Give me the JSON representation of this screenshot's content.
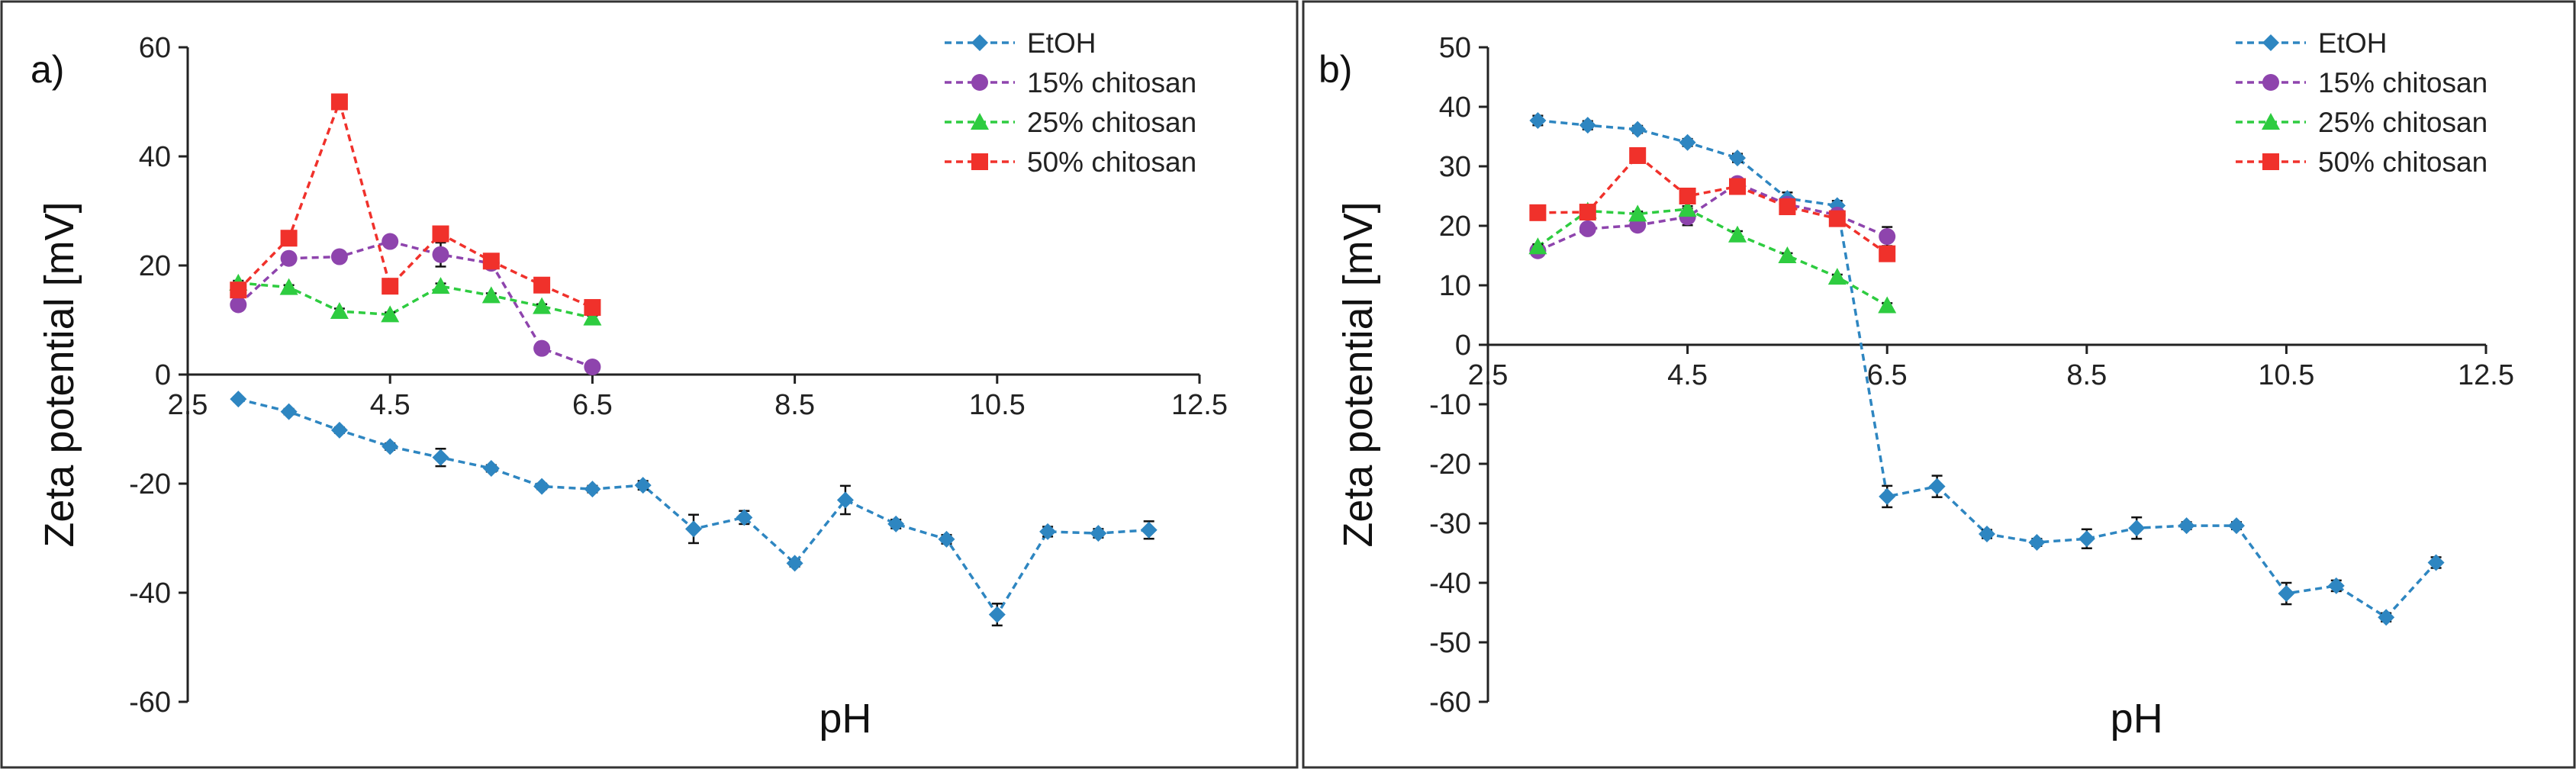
{
  "chart_data": [
    {
      "panel": "a)",
      "type": "line",
      "xlabel": "pH",
      "ylabel": "Zeta potential [mV]",
      "xlim": [
        2.5,
        12.5
      ],
      "ylim": [
        -60,
        60
      ],
      "xticks": [
        2.5,
        4.5,
        6.5,
        8.5,
        10.5,
        12.5
      ],
      "yticks": [
        -60,
        -40,
        -20,
        0,
        20,
        40,
        60
      ],
      "xtick_labels": [
        "2.5",
        "4.5",
        "6.5",
        "8.5",
        "10.5",
        "12.5"
      ],
      "ytick_labels": [
        "-60",
        "-40",
        "-20",
        "0",
        "20",
        "40",
        "60"
      ],
      "legend_position": "top-right",
      "series": [
        {
          "name": "EtOH",
          "color": "#2e86c1",
          "marker": "diamond",
          "x": [
            3,
            3.5,
            4,
            4.5,
            5,
            5.5,
            6,
            6.5,
            7,
            7.5,
            8,
            8.5,
            9,
            9.5,
            10,
            10.5,
            11,
            11.5,
            12
          ],
          "y": [
            -4.5,
            -6.8,
            -10.2,
            -13.2,
            -15.2,
            -17.2,
            -20.5,
            -21,
            -20.3,
            -28.3,
            -26.2,
            -34.6,
            -23,
            -27.4,
            -30.2,
            -44,
            -28.8,
            -29.1,
            -28.5
          ],
          "err": [
            0.4,
            0.5,
            0.5,
            0.6,
            1.6,
            0.6,
            0.5,
            0.6,
            0.8,
            2.6,
            1.2,
            0.6,
            2.6,
            0.8,
            0.8,
            2.0,
            0.9,
            0.8,
            1.6
          ]
        },
        {
          "name": "15% chitosan",
          "color": "#8e44ad",
          "marker": "circle",
          "x": [
            3,
            3.5,
            4,
            4.5,
            5,
            5.5,
            6,
            6.5
          ],
          "y": [
            12.8,
            21.3,
            21.6,
            24.4,
            22,
            20.4,
            4.8,
            1.4
          ],
          "err": [
            0.4,
            0.6,
            0.5,
            0.7,
            2.2,
            0.8,
            0.4,
            0.3
          ]
        },
        {
          "name": "25% chitosan",
          "color": "#2ecc40",
          "marker": "triangle",
          "x": [
            3,
            3.5,
            4,
            4.5,
            5,
            5.5,
            6,
            6.5
          ],
          "y": [
            16.8,
            16,
            11.6,
            11,
            16.2,
            14.5,
            12.5,
            10.4
          ],
          "err": [
            0.4,
            0.4,
            0.5,
            0.4,
            0.5,
            0.4,
            0.4,
            0.4
          ]
        },
        {
          "name": "50% chitosan",
          "color": "#f0312b",
          "marker": "square",
          "x": [
            3,
            3.5,
            4,
            4.5,
            5,
            5.5,
            6,
            6.5
          ],
          "y": [
            15.5,
            25,
            50,
            16.2,
            25.8,
            20.8,
            16.4,
            12.3
          ],
          "err": [
            0.6,
            0.8,
            0.6,
            0.6,
            0.8,
            0.6,
            0.6,
            0.5
          ]
        }
      ]
    },
    {
      "panel": "b)",
      "type": "line",
      "xlabel": "pH",
      "ylabel": "Zeta potential [mV]",
      "xlim": [
        2.5,
        12.5
      ],
      "ylim": [
        -60,
        50
      ],
      "xticks": [
        2.5,
        4.5,
        6.5,
        8.5,
        10.5,
        12.5
      ],
      "yticks": [
        -60,
        -50,
        -40,
        -30,
        -20,
        -10,
        0,
        10,
        20,
        30,
        40,
        50
      ],
      "xtick_labels": [
        "2.5",
        "4.5",
        "6.5",
        "8.5",
        "10.5",
        "12.5"
      ],
      "ytick_labels": [
        "-60",
        "-50",
        "-40",
        "-30",
        "-20",
        "-10",
        "0",
        "10",
        "20",
        "30",
        "40",
        "50"
      ],
      "legend_position": "top-right",
      "series": [
        {
          "name": "EtOH",
          "color": "#2e86c1",
          "marker": "diamond",
          "x": [
            3,
            3.5,
            4,
            4.5,
            5,
            5.5,
            6,
            6.5,
            7,
            7.5,
            8,
            8.5,
            9,
            9.5,
            10,
            10.5,
            11,
            11.5,
            12
          ],
          "y": [
            37.7,
            36.9,
            36.2,
            34,
            31.4,
            24.6,
            23.4,
            -25.5,
            -23.8,
            -31.8,
            -33.2,
            -32.6,
            -30.8,
            -30.4,
            -30.4,
            -41.8,
            -40.5,
            -45.8,
            -36.6
          ],
          "err": [
            0.8,
            0.7,
            0.6,
            0.6,
            0.7,
            1.0,
            0.8,
            1.8,
            1.8,
            0.7,
            0.6,
            1.6,
            1.8,
            0.6,
            0.6,
            1.8,
            0.9,
            0.7,
            0.9
          ]
        },
        {
          "name": "15% chitosan",
          "color": "#8e44ad",
          "marker": "circle",
          "x": [
            3,
            3.5,
            4,
            4.5,
            5,
            5.5,
            6,
            6.5
          ],
          "y": [
            15.8,
            19.5,
            20.1,
            21.5,
            27.1,
            23.6,
            21.8,
            18.2
          ],
          "err": [
            0.8,
            0.8,
            0.6,
            1.4,
            0.8,
            0.8,
            0.9,
            1.6
          ]
        },
        {
          "name": "25% chitosan",
          "color": "#2ecc40",
          "marker": "triangle",
          "x": [
            3,
            3.5,
            4,
            4.5,
            5,
            5.5,
            6,
            6.5
          ],
          "y": [
            16.5,
            22.5,
            22,
            22.8,
            18.5,
            15,
            11.4,
            6.6
          ],
          "err": [
            0.4,
            0.5,
            0.4,
            0.5,
            0.6,
            0.4,
            0.4,
            0.4
          ]
        },
        {
          "name": "50% chitosan",
          "color": "#f0312b",
          "marker": "square",
          "x": [
            3,
            3.5,
            4,
            4.5,
            5,
            5.5,
            6,
            6.5
          ],
          "y": [
            22.2,
            22.3,
            31.8,
            25,
            26.6,
            23.2,
            21.2,
            15.3
          ],
          "err": [
            0.6,
            0.6,
            0.6,
            0.6,
            0.6,
            0.6,
            0.6,
            0.8
          ]
        }
      ]
    }
  ]
}
